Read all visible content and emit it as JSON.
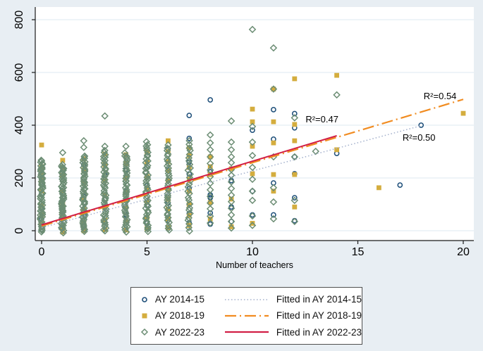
{
  "figure": {
    "background": "#e8eef3",
    "plot_background": "#ffffff",
    "gridline_color": "#dde8f1",
    "axis_color": "#1a1a1a",
    "text_color": "#000000"
  },
  "chart_data": {
    "type": "scatter",
    "title": "",
    "xlabel": "Number of teachers",
    "ylabel": "",
    "xlim": [
      -0.3,
      20.5
    ],
    "ylim": [
      -37,
      848
    ],
    "x_ticks": [
      0,
      5,
      10,
      15,
      20
    ],
    "y_ticks": [
      0,
      200,
      400,
      600,
      800
    ],
    "grid": "horizontal",
    "series": [
      {
        "name": "AY 2014-15",
        "marker": "circle",
        "color": "#1d4e79",
        "points": [
          [
            0,
            235
          ],
          [
            0,
            185
          ],
          [
            0,
            140
          ],
          [
            0,
            90
          ],
          [
            0,
            45
          ],
          [
            1,
            220
          ],
          [
            1,
            160
          ],
          [
            1,
            75
          ],
          [
            2,
            250
          ],
          [
            2,
            130
          ],
          [
            2,
            60
          ],
          [
            3,
            210
          ],
          [
            3,
            120
          ],
          [
            3,
            30
          ],
          [
            4,
            230
          ],
          [
            4,
            150
          ],
          [
            4,
            60
          ],
          [
            5,
            240
          ],
          [
            5,
            170
          ],
          [
            5,
            95
          ],
          [
            5,
            28
          ],
          [
            6,
            310
          ],
          [
            6,
            230
          ],
          [
            6,
            105
          ],
          [
            6,
            40
          ],
          [
            7,
            437
          ],
          [
            7,
            350
          ],
          [
            7,
            260
          ],
          [
            7,
            215
          ],
          [
            7,
            160
          ],
          [
            7,
            100
          ],
          [
            7,
            65
          ],
          [
            7,
            30
          ],
          [
            8,
            496
          ],
          [
            8,
            223
          ],
          [
            8,
            136
          ],
          [
            8,
            125
          ],
          [
            8,
            67
          ],
          [
            8,
            25
          ],
          [
            9,
            190
          ],
          [
            9,
            90
          ],
          [
            9,
            35
          ],
          [
            10,
            381
          ],
          [
            10,
            150
          ],
          [
            10,
            60
          ],
          [
            11,
            459
          ],
          [
            11,
            347
          ],
          [
            11,
            181
          ],
          [
            11,
            60
          ],
          [
            12,
            444
          ],
          [
            12,
            390
          ],
          [
            12,
            280
          ],
          [
            12,
            216
          ],
          [
            12,
            125
          ],
          [
            12,
            38
          ],
          [
            14,
            293
          ],
          [
            17,
            173
          ],
          [
            18,
            400
          ]
        ]
      },
      {
        "name": "AY 2018-19",
        "marker": "square",
        "color": "#d4ad3e",
        "points": [
          [
            0,
            325
          ],
          [
            0,
            243
          ],
          [
            0,
            222
          ],
          [
            0,
            190
          ],
          [
            0,
            150
          ],
          [
            0,
            95
          ],
          [
            0,
            60
          ],
          [
            0,
            28
          ],
          [
            1,
            267
          ],
          [
            1,
            240
          ],
          [
            1,
            210
          ],
          [
            1,
            150
          ],
          [
            1,
            100
          ],
          [
            1,
            55
          ],
          [
            1,
            10
          ],
          [
            1,
            -5
          ],
          [
            2,
            272
          ],
          [
            2,
            230
          ],
          [
            2,
            180
          ],
          [
            2,
            120
          ],
          [
            2,
            80
          ],
          [
            2,
            30
          ],
          [
            2,
            0
          ],
          [
            3,
            291
          ],
          [
            3,
            250
          ],
          [
            3,
            190
          ],
          [
            3,
            135
          ],
          [
            3,
            85
          ],
          [
            3,
            40
          ],
          [
            3,
            5
          ],
          [
            4,
            288
          ],
          [
            4,
            255
          ],
          [
            4,
            200
          ],
          [
            4,
            145
          ],
          [
            4,
            90
          ],
          [
            4,
            35
          ],
          [
            4,
            3
          ],
          [
            5,
            300
          ],
          [
            5,
            260
          ],
          [
            5,
            205
          ],
          [
            5,
            160
          ],
          [
            5,
            110
          ],
          [
            5,
            50
          ],
          [
            5,
            8
          ],
          [
            6,
            341
          ],
          [
            6,
            300
          ],
          [
            6,
            262
          ],
          [
            6,
            228
          ],
          [
            6,
            190
          ],
          [
            6,
            155
          ],
          [
            6,
            120
          ],
          [
            6,
            82
          ],
          [
            6,
            45
          ],
          [
            6,
            12
          ],
          [
            7,
            315
          ],
          [
            7,
            285
          ],
          [
            7,
            240
          ],
          [
            7,
            195
          ],
          [
            7,
            150
          ],
          [
            7,
            100
          ],
          [
            7,
            58
          ],
          [
            7,
            20
          ],
          [
            8,
            280
          ],
          [
            8,
            243
          ],
          [
            8,
            213
          ],
          [
            8,
            107
          ],
          [
            8,
            45
          ],
          [
            9,
            235
          ],
          [
            9,
            120
          ],
          [
            9,
            15
          ],
          [
            10,
            461
          ],
          [
            10,
            413
          ],
          [
            10,
            320
          ],
          [
            10,
            216
          ],
          [
            10,
            28
          ],
          [
            11,
            537
          ],
          [
            11,
            413
          ],
          [
            11,
            333
          ],
          [
            11,
            213
          ],
          [
            11,
            150
          ],
          [
            12,
            576
          ],
          [
            12,
            403
          ],
          [
            12,
            341
          ],
          [
            12,
            213
          ],
          [
            12,
            90
          ],
          [
            14,
            589
          ],
          [
            14,
            307
          ],
          [
            16,
            163
          ],
          [
            20,
            445
          ]
        ]
      },
      {
        "name": "AY 2022-23",
        "marker": "diamond",
        "color": "#6c8d74",
        "points": [
          [
            0,
            264
          ],
          [
            1,
            296
          ],
          [
            2,
            341
          ],
          [
            2,
            316
          ],
          [
            3,
            435
          ],
          [
            3,
            320
          ],
          [
            4,
            320
          ],
          [
            6,
            325
          ],
          [
            8,
            363
          ],
          [
            8,
            333
          ],
          [
            8,
            307
          ],
          [
            8,
            280
          ],
          [
            8,
            255
          ],
          [
            8,
            230
          ],
          [
            8,
            205
          ],
          [
            8,
            180
          ],
          [
            8,
            155
          ],
          [
            8,
            130
          ],
          [
            8,
            105
          ],
          [
            8,
            83
          ],
          [
            8,
            55
          ],
          [
            8,
            29
          ],
          [
            9,
            416
          ],
          [
            9,
            336
          ],
          [
            9,
            307
          ],
          [
            9,
            280
          ],
          [
            9,
            258
          ],
          [
            9,
            232
          ],
          [
            9,
            210
          ],
          [
            9,
            185
          ],
          [
            9,
            160
          ],
          [
            9,
            135
          ],
          [
            9,
            110
          ],
          [
            9,
            85
          ],
          [
            9,
            60
          ],
          [
            9,
            35
          ],
          [
            9,
            10
          ],
          [
            10,
            763
          ],
          [
            10,
            395
          ],
          [
            10,
            336
          ],
          [
            10,
            285
          ],
          [
            10,
            240
          ],
          [
            10,
            195
          ],
          [
            10,
            150
          ],
          [
            10,
            115
          ],
          [
            10,
            56
          ],
          [
            10,
            20
          ],
          [
            11,
            693
          ],
          [
            11,
            537
          ],
          [
            11,
            280
          ],
          [
            11,
            163
          ],
          [
            11,
            109
          ],
          [
            11,
            45
          ],
          [
            12,
            428
          ],
          [
            12,
            280
          ],
          [
            12,
            115
          ],
          [
            12,
            35
          ],
          [
            13,
            301
          ],
          [
            14,
            515
          ]
        ],
        "dense_columns": [
          {
            "x": 0,
            "vmin": -5,
            "vmax": 265,
            "n": 60
          },
          {
            "x": 1,
            "vmin": -5,
            "vmax": 252,
            "n": 55
          },
          {
            "x": 2,
            "vmin": -3,
            "vmax": 285,
            "n": 52
          },
          {
            "x": 3,
            "vmin": -3,
            "vmax": 302,
            "n": 48
          },
          {
            "x": 4,
            "vmin": -3,
            "vmax": 292,
            "n": 45
          },
          {
            "x": 5,
            "vmin": -3,
            "vmax": 336,
            "n": 44
          },
          {
            "x": 6,
            "vmin": 0,
            "vmax": 312,
            "n": 34
          },
          {
            "x": 7,
            "vmin": 0,
            "vmax": 340,
            "n": 28
          }
        ]
      }
    ],
    "fit_lines": [
      {
        "name": "Fitted in AY 2014-15",
        "style": "dotted",
        "color": "#a3b0cc",
        "x0": 0,
        "y0": 12,
        "x1": 18,
        "y1": 398,
        "r2": "R²=0.50"
      },
      {
        "name": "Fitted in AY 2018-19",
        "style": "dashdot",
        "color": "#f18c21",
        "x0": 0,
        "y0": 18,
        "x1": 20,
        "y1": 498,
        "r2": "R²=0.54"
      },
      {
        "name": "Fitted in AY 2022-23",
        "style": "solid",
        "color": "#d21f45",
        "x0": 0,
        "y0": 22,
        "x1": 14,
        "y1": 360,
        "r2": "R²=0.47"
      }
    ],
    "annotations": [
      {
        "text": "R²=0.47",
        "x": 13.3,
        "y": 411
      },
      {
        "text": "R²=0.54",
        "x": 18.9,
        "y": 499
      },
      {
        "text": "R²=0.50",
        "x": 17.9,
        "y": 341
      }
    ],
    "legend_position": "bottom-center"
  },
  "legend": {
    "rows": [
      {
        "marker": "circle-icon",
        "marker_color": "#1d4e79",
        "label": "AY 2014-15",
        "line_style": "dotted",
        "line_color": "#a3b0cc",
        "line_label": "Fitted in AY 2014-15"
      },
      {
        "marker": "square-icon",
        "marker_color": "#d4ad3e",
        "label": "AY 2018-19",
        "line_style": "dashdot",
        "line_color": "#f18c21",
        "line_label": "Fitted in AY 2018-19"
      },
      {
        "marker": "diamond-icon",
        "marker_color": "#6c8d74",
        "label": "AY 2022-23",
        "line_style": "solid",
        "line_color": "#d21f45",
        "line_label": "Fitted in AY 2022-23"
      }
    ]
  }
}
